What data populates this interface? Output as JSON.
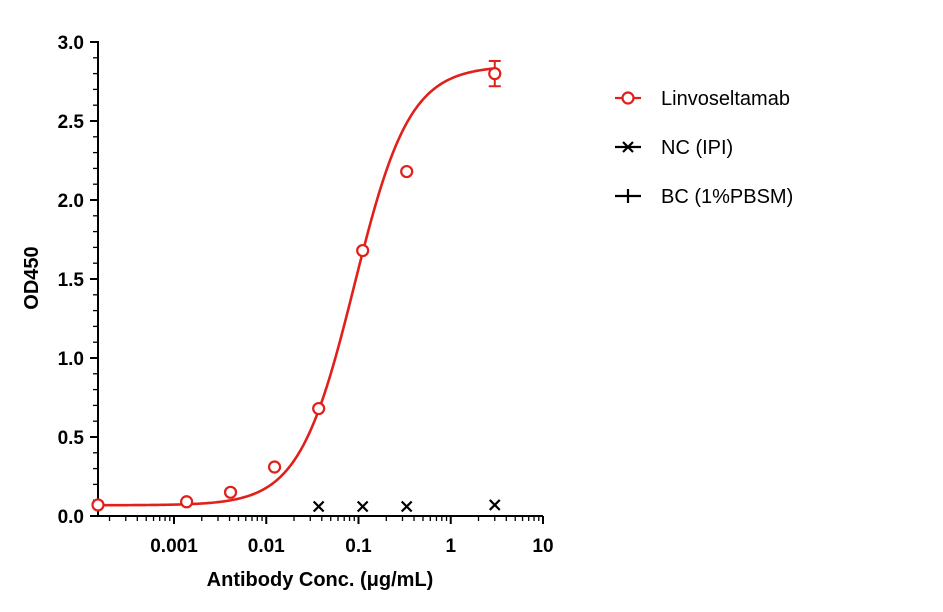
{
  "chart_data": {
    "type": "scatter",
    "title": "",
    "xlabel": "Antibody Conc. (μg/mL)",
    "ylabel": "OD450",
    "x_scale": "log",
    "xlim": [
      0.00015,
      10
    ],
    "ylim": [
      0,
      3.0
    ],
    "x_ticks": [
      0.001,
      0.01,
      0.1,
      1,
      10
    ],
    "x_tick_labels": [
      "0.001",
      "0.01",
      "0.1",
      "1",
      "10"
    ],
    "y_ticks": [
      0,
      0.5,
      1.0,
      1.5,
      2.0,
      2.5,
      3.0
    ],
    "y_tick_labels": [
      "0.0",
      "0.5",
      "1.0",
      "1.5",
      "2.0",
      "2.5",
      "3.0"
    ],
    "grid": false,
    "legend_position": "right",
    "series": [
      {
        "name": "Linvoseltamab",
        "marker": "open-circle",
        "color": "#e0201b",
        "fit_curve": "4PL",
        "x": [
          0.00015,
          0.00137,
          0.0041,
          0.0123,
          0.037,
          0.111,
          0.333,
          3.0
        ],
        "y": [
          0.07,
          0.09,
          0.15,
          0.31,
          0.68,
          1.68,
          2.18,
          2.8
        ],
        "error": [
          0,
          0,
          0,
          0,
          0,
          0,
          0,
          0.08
        ]
      },
      {
        "name": "NC (IPI)",
        "marker": "x",
        "color": "#000000",
        "x": [
          0.037,
          0.111,
          0.333,
          3.0
        ],
        "y": [
          0.06,
          0.06,
          0.06,
          0.07
        ]
      },
      {
        "name": "BC (1%PBSM)",
        "marker": "plus",
        "color": "#000000",
        "x": [],
        "y": []
      }
    ]
  }
}
